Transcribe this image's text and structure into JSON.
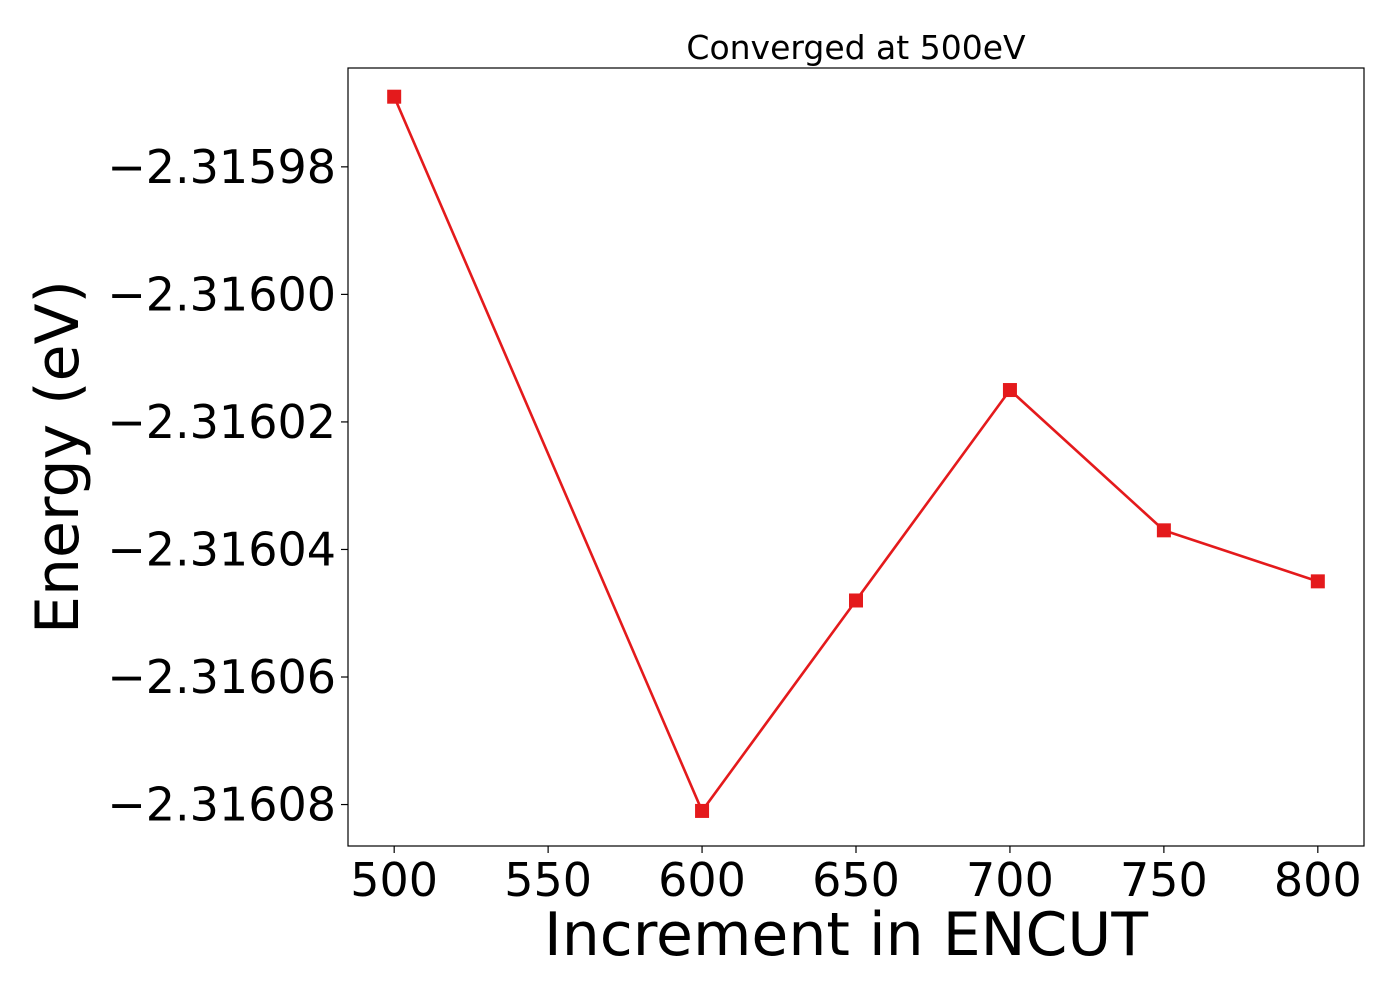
{
  "chart_data": {
    "type": "line",
    "title": "Converged at 500eV",
    "xlabel": "Increment in ENCUT",
    "ylabel": "Energy (eV)",
    "x": [
      500,
      600,
      650,
      700,
      750,
      800
    ],
    "series": [
      {
        "values": [
          -2.315969,
          -2.316081,
          -2.316048,
          -2.316015,
          -2.316037,
          -2.316045
        ],
        "color": "#e41a1c",
        "marker": "square"
      }
    ],
    "xlim": [
      485,
      815
    ],
    "ylim": [
      -2.3160865,
      -2.3159645
    ],
    "xticks": [
      500,
      550,
      600,
      650,
      700,
      750,
      800
    ],
    "xtick_labels": [
      "500",
      "550",
      "600",
      "650",
      "700",
      "750",
      "800"
    ],
    "yticks": [
      -2.31598,
      -2.316,
      -2.31602,
      -2.31604,
      -2.31606,
      -2.31608
    ],
    "ytick_labels": [
      "−2.31598",
      "−2.31600",
      "−2.31602",
      "−2.31604",
      "−2.31606",
      "−2.31608"
    ],
    "grid": false,
    "legend": "none"
  }
}
